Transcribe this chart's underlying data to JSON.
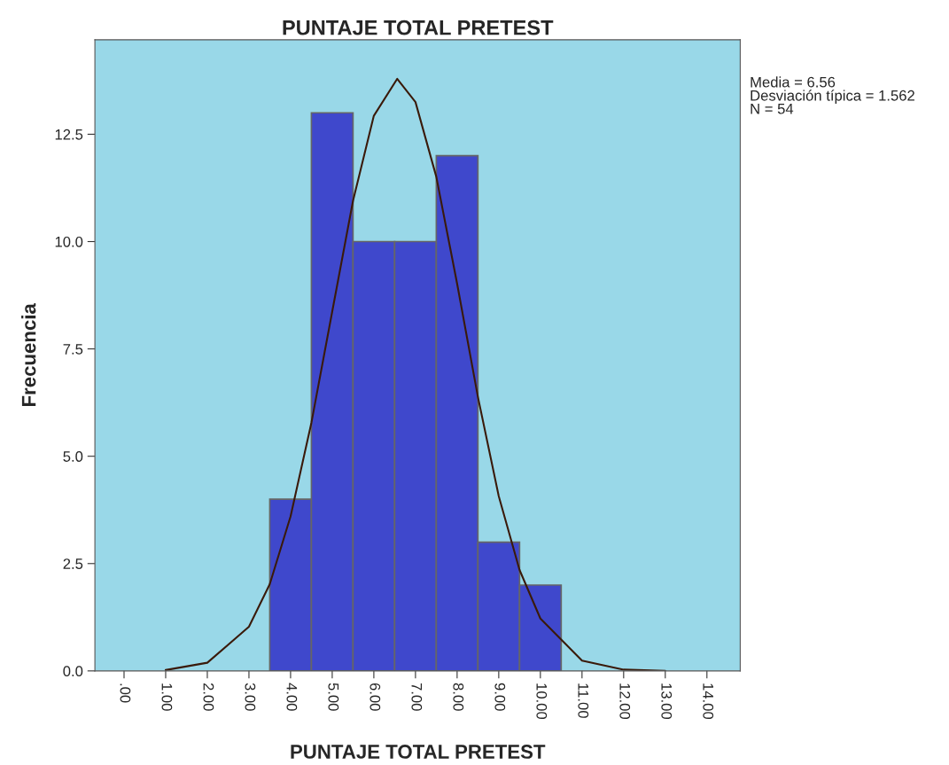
{
  "chart_data": {
    "type": "histogram",
    "title": "PUNTAJE TOTAL PRETEST",
    "xlabel": "PUNTAJE TOTAL PRETEST",
    "ylabel": "Frecuencia",
    "bins": [
      3.5,
      4.5,
      5.5,
      6.5,
      7.5,
      8.5,
      9.5,
      10.5
    ],
    "values": [
      4,
      13,
      10,
      10,
      12,
      3,
      2
    ],
    "color": "#3f48cc",
    "series": [
      {
        "type": "line",
        "color": "#3a1a0a",
        "x": [
          1,
          2,
          3,
          3.5,
          4,
          4.5,
          5,
          5.5,
          6,
          6.56,
          7,
          7.5,
          8,
          8.5,
          9,
          9.5,
          10,
          11,
          12,
          13
        ],
        "values": [
          0.02,
          0.19,
          1.03,
          2.02,
          3.6,
          5.78,
          8.37,
          10.95,
          12.93,
          13.79,
          13.25,
          11.51,
          9.02,
          6.38,
          4.07,
          2.35,
          1.22,
          0.24,
          0.03,
          0
        ]
      }
    ],
    "xlim": [
      -0.7,
      14.8
    ],
    "ylim": [
      0,
      14.7
    ],
    "xticks": [
      {
        "value": 0,
        "label": ".00"
      },
      {
        "value": 1,
        "label": "1.00"
      },
      {
        "value": 2,
        "label": "2.00"
      },
      {
        "value": 3,
        "label": "3.00"
      },
      {
        "value": 4,
        "label": "4.00"
      },
      {
        "value": 5,
        "label": "5.00"
      },
      {
        "value": 6,
        "label": "6.00"
      },
      {
        "value": 7,
        "label": "7.00"
      },
      {
        "value": 8,
        "label": "8.00"
      },
      {
        "value": 9,
        "label": "9.00"
      },
      {
        "value": 10,
        "label": "10.00"
      },
      {
        "value": 11,
        "label": "11.00"
      },
      {
        "value": 12,
        "label": "12.00"
      },
      {
        "value": 13,
        "label": "13.00"
      },
      {
        "value": 14,
        "label": "14.00"
      }
    ],
    "yticks": [
      {
        "value": 0,
        "label": "0.0"
      },
      2.5,
      {
        "value": 5,
        "label": "5.0"
      },
      7.5,
      {
        "value": 10,
        "label": "10.0"
      },
      12.5
    ],
    "annotations": [
      "Media = 6.56\nDesviación típica = 1.562\nN = 54"
    ],
    "grid": false
  }
}
